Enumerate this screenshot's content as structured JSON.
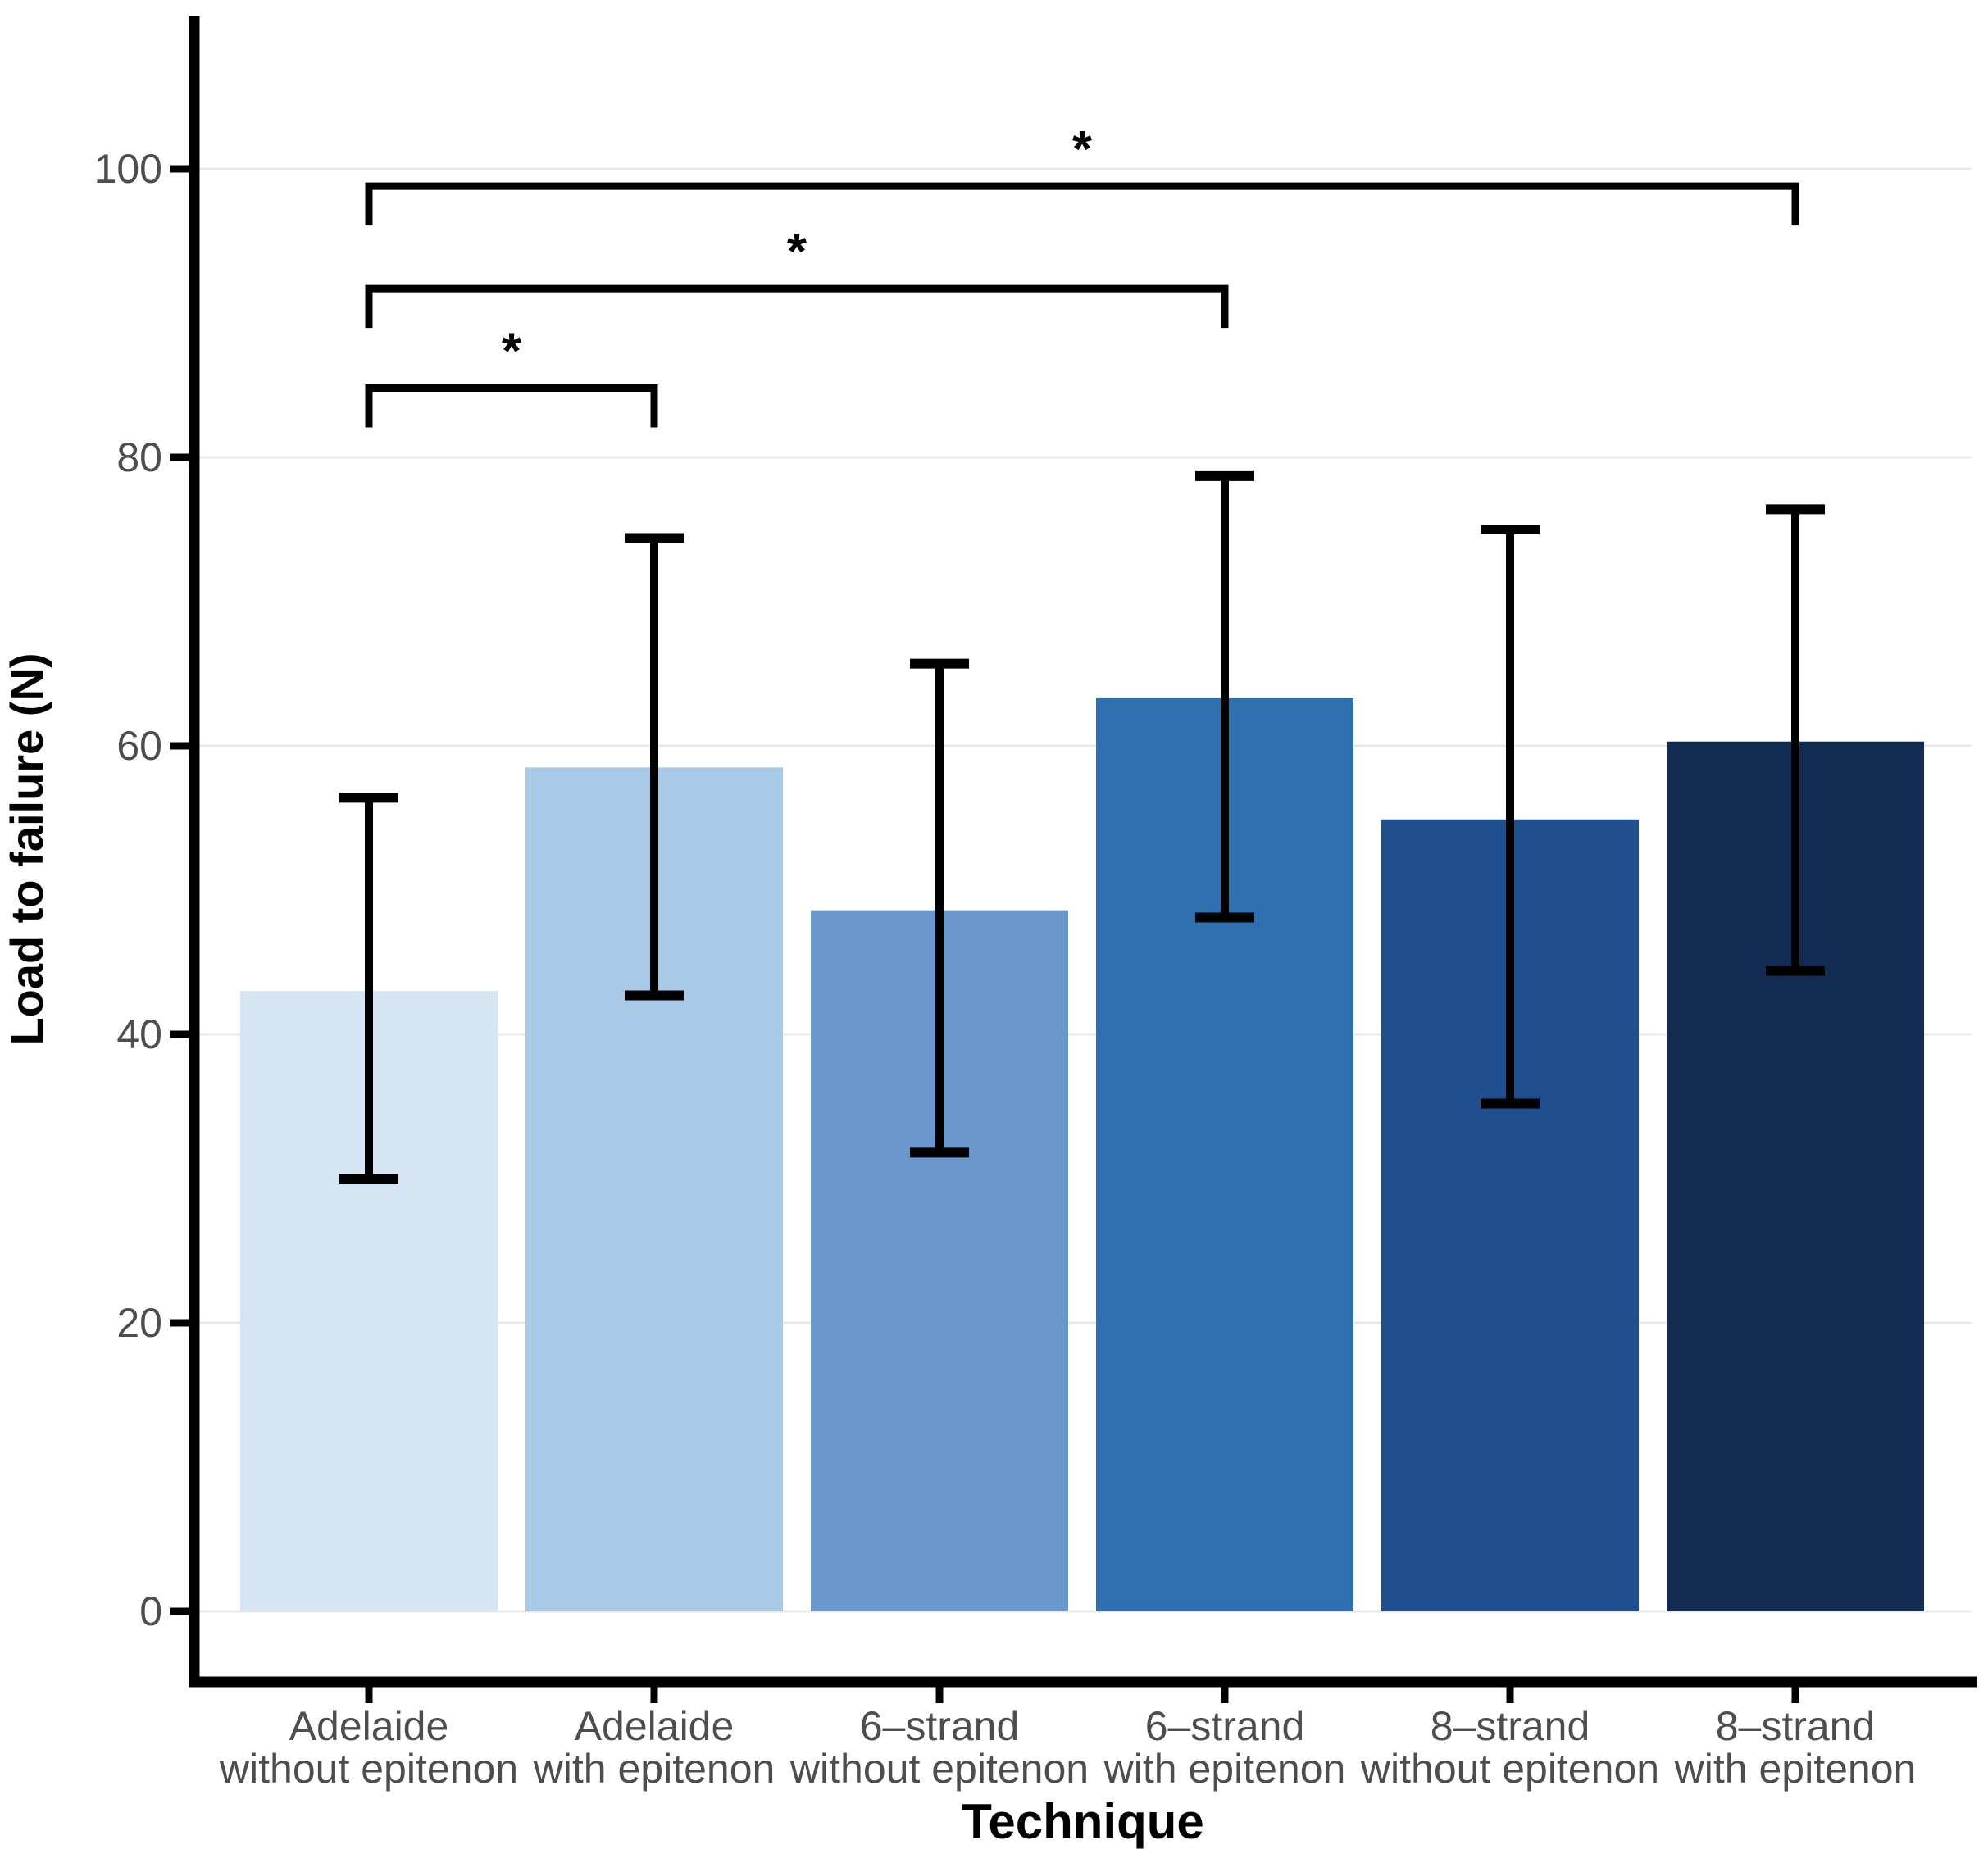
{
  "chart_data": {
    "type": "bar",
    "title": "",
    "xlabel": "Technique",
    "ylabel": "Load to failure (N)",
    "categories": [
      {
        "line1": "Adelaide",
        "line2": "without epitenon"
      },
      {
        "line1": "Adelaide",
        "line2": "with epitenon"
      },
      {
        "line1": "6–strand",
        "line2": "without epitenon"
      },
      {
        "line1": "6–strand",
        "line2": "with epitenon"
      },
      {
        "line1": "8–strand",
        "line2": "without epitenon"
      },
      {
        "line1": "8–strand",
        "line2": "with epitenon"
      }
    ],
    "values": [
      43.0,
      58.5,
      48.6,
      63.3,
      54.9,
      60.3
    ],
    "error_upper": [
      56.4,
      74.4,
      65.7,
      78.7,
      75.0,
      76.4
    ],
    "error_lower": [
      30.0,
      42.7,
      31.8,
      48.1,
      35.2,
      44.4
    ],
    "bar_colors": [
      "#d5e5f4",
      "#a9cae6",
      "#6a98cd",
      "#2f70b0",
      "#1f4f8e",
      "#122b52"
    ],
    "yticks": [
      0,
      20,
      40,
      60,
      80,
      100
    ],
    "ylim": [
      -4.9,
      110.6
    ],
    "grid": "horizontal major gridlines only",
    "legend": "none",
    "gridline_color": "#e8e8e8",
    "axis_tick_text_color": "#4d4d4d",
    "axis_line_color": "#000000",
    "error_bar_color": "#000000",
    "significance_brackets": [
      {
        "from_index": 0,
        "to_index": 1,
        "label": "*",
        "y": 84.8
      },
      {
        "from_index": 0,
        "to_index": 3,
        "label": "*",
        "y": 91.7
      },
      {
        "from_index": 0,
        "to_index": 5,
        "label": "*",
        "y": 98.8
      }
    ]
  }
}
